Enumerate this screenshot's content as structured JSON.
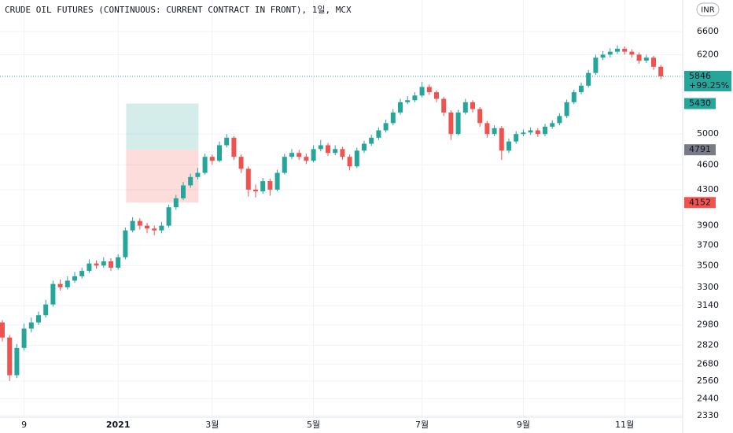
{
  "chart_data": {
    "type": "candlestick",
    "title": "CRUDE OIL FUTURES (CONTINUOUS: CURRENT CONTRACT IN FRONT), 1일, MCX",
    "currency": "INR",
    "up_color": "#26a69a",
    "down_color": "#ef5350",
    "log_scale": true,
    "grid": true,
    "ylim": [
      2320,
      7190
    ],
    "yticks": [
      2330,
      2440,
      2560,
      2680,
      2820,
      2980,
      3140,
      3300,
      3500,
      3700,
      3900,
      4300,
      4600,
      5000,
      6200,
      6600
    ],
    "categories": [
      null,
      null,
      null,
      "9",
      null,
      null,
      null,
      null,
      null,
      null,
      null,
      null,
      null,
      null,
      null,
      null,
      "2021",
      null,
      null,
      null,
      null,
      null,
      null,
      null,
      null,
      null,
      null,
      null,
      null,
      "3월",
      null,
      null,
      null,
      null,
      null,
      null,
      null,
      null,
      null,
      null,
      null,
      null,
      null,
      "5월",
      null,
      null,
      null,
      null,
      null,
      null,
      null,
      null,
      null,
      null,
      null,
      null,
      null,
      null,
      "7월",
      null,
      null,
      null,
      null,
      null,
      null,
      null,
      null,
      null,
      null,
      null,
      null,
      null,
      "9월",
      null,
      null,
      null,
      null,
      null,
      null,
      null,
      null,
      null,
      null,
      null,
      null,
      null,
      "11월",
      null,
      null,
      null,
      null,
      null
    ],
    "open": [
      3000,
      2880,
      2600,
      2800,
      2950,
      3000,
      3060,
      3150,
      3330,
      3300,
      3360,
      3400,
      3450,
      3520,
      3500,
      3540,
      3480,
      3580,
      3850,
      3950,
      3900,
      3870,
      3850,
      3900,
      4100,
      4200,
      4350,
      4450,
      4500,
      4700,
      4650,
      4850,
      4950,
      4700,
      4550,
      4300,
      4280,
      4400,
      4300,
      4500,
      4700,
      4750,
      4700,
      4650,
      4800,
      4850,
      4750,
      4800,
      4700,
      4580,
      4780,
      4870,
      4950,
      5050,
      5150,
      5300,
      5450,
      5480,
      5550,
      5680,
      5600,
      5500,
      5300,
      5000,
      5300,
      5450,
      5350,
      5150,
      5000,
      5080,
      4780,
      4900,
      5000,
      5020,
      5050,
      5000,
      5100,
      5150,
      5250,
      5450,
      5600,
      5700,
      5900,
      6150,
      6200,
      6250,
      6300,
      6250,
      6200,
      6100,
      6150,
      6000
    ],
    "high": [
      3020,
      2900,
      2830,
      2990,
      3040,
      3090,
      3190,
      3360,
      3370,
      3400,
      3440,
      3480,
      3560,
      3550,
      3580,
      3570,
      3610,
      3880,
      3990,
      3980,
      3930,
      3900,
      3940,
      4130,
      4240,
      4390,
      4490,
      4560,
      4740,
      4730,
      4900,
      5000,
      4970,
      4730,
      4580,
      4360,
      4440,
      4430,
      4540,
      4740,
      4800,
      4790,
      4740,
      4850,
      4920,
      4880,
      4850,
      4830,
      4730,
      4820,
      4910,
      4990,
      5090,
      5200,
      5350,
      5500,
      5540,
      5600,
      5760,
      5720,
      5630,
      5530,
      5330,
      5340,
      5500,
      5480,
      5380,
      5180,
      5120,
      5110,
      4940,
      5040,
      5060,
      5090,
      5080,
      5140,
      5190,
      5290,
      5490,
      5640,
      5750,
      5950,
      6200,
      6260,
      6310,
      6360,
      6340,
      6290,
      6240,
      6200,
      6180,
      6030
    ],
    "low": [
      2850,
      2560,
      2580,
      2780,
      2920,
      2980,
      3040,
      3130,
      3270,
      3280,
      3340,
      3380,
      3430,
      3470,
      3480,
      3450,
      3460,
      3560,
      3830,
      3860,
      3820,
      3800,
      3820,
      3880,
      4070,
      4180,
      4320,
      4420,
      4480,
      4600,
      4630,
      4820,
      4660,
      4500,
      4220,
      4210,
      4250,
      4230,
      4280,
      4480,
      4670,
      4660,
      4610,
      4630,
      4770,
      4710,
      4720,
      4660,
      4530,
      4560,
      4750,
      4840,
      4920,
      5020,
      5120,
      5270,
      5420,
      5450,
      5520,
      5560,
      5450,
      5250,
      4920,
      4980,
      5270,
      5300,
      5100,
      4950,
      4970,
      4660,
      4750,
      4870,
      4970,
      4990,
      4960,
      4970,
      5070,
      5120,
      5220,
      5420,
      5570,
      5670,
      5870,
      6110,
      6150,
      6210,
      6200,
      6150,
      6050,
      6060,
      5950,
      5800
    ],
    "close": [
      2880,
      2600,
      2800,
      2950,
      3000,
      3060,
      3150,
      3330,
      3300,
      3360,
      3400,
      3450,
      3520,
      3500,
      3540,
      3480,
      3580,
      3850,
      3950,
      3900,
      3870,
      3850,
      3900,
      4100,
      4200,
      4350,
      4450,
      4500,
      4700,
      4650,
      4850,
      4950,
      4700,
      4550,
      4300,
      4280,
      4400,
      4300,
      4500,
      4700,
      4750,
      4700,
      4650,
      4800,
      4850,
      4750,
      4800,
      4700,
      4580,
      4780,
      4870,
      4950,
      5050,
      5150,
      5300,
      5450,
      5480,
      5550,
      5680,
      5600,
      5500,
      5300,
      5000,
      5300,
      5450,
      5350,
      5150,
      5000,
      5080,
      4780,
      4900,
      5000,
      5020,
      5050,
      5000,
      5100,
      5150,
      5250,
      5450,
      5600,
      5700,
      5900,
      6150,
      6200,
      6250,
      6300,
      6250,
      6200,
      6100,
      6150,
      6000,
      5846
    ],
    "change_label": "+99.25%",
    "position": {
      "target": 5430,
      "entry": 4791,
      "stop": 4152
    }
  }
}
